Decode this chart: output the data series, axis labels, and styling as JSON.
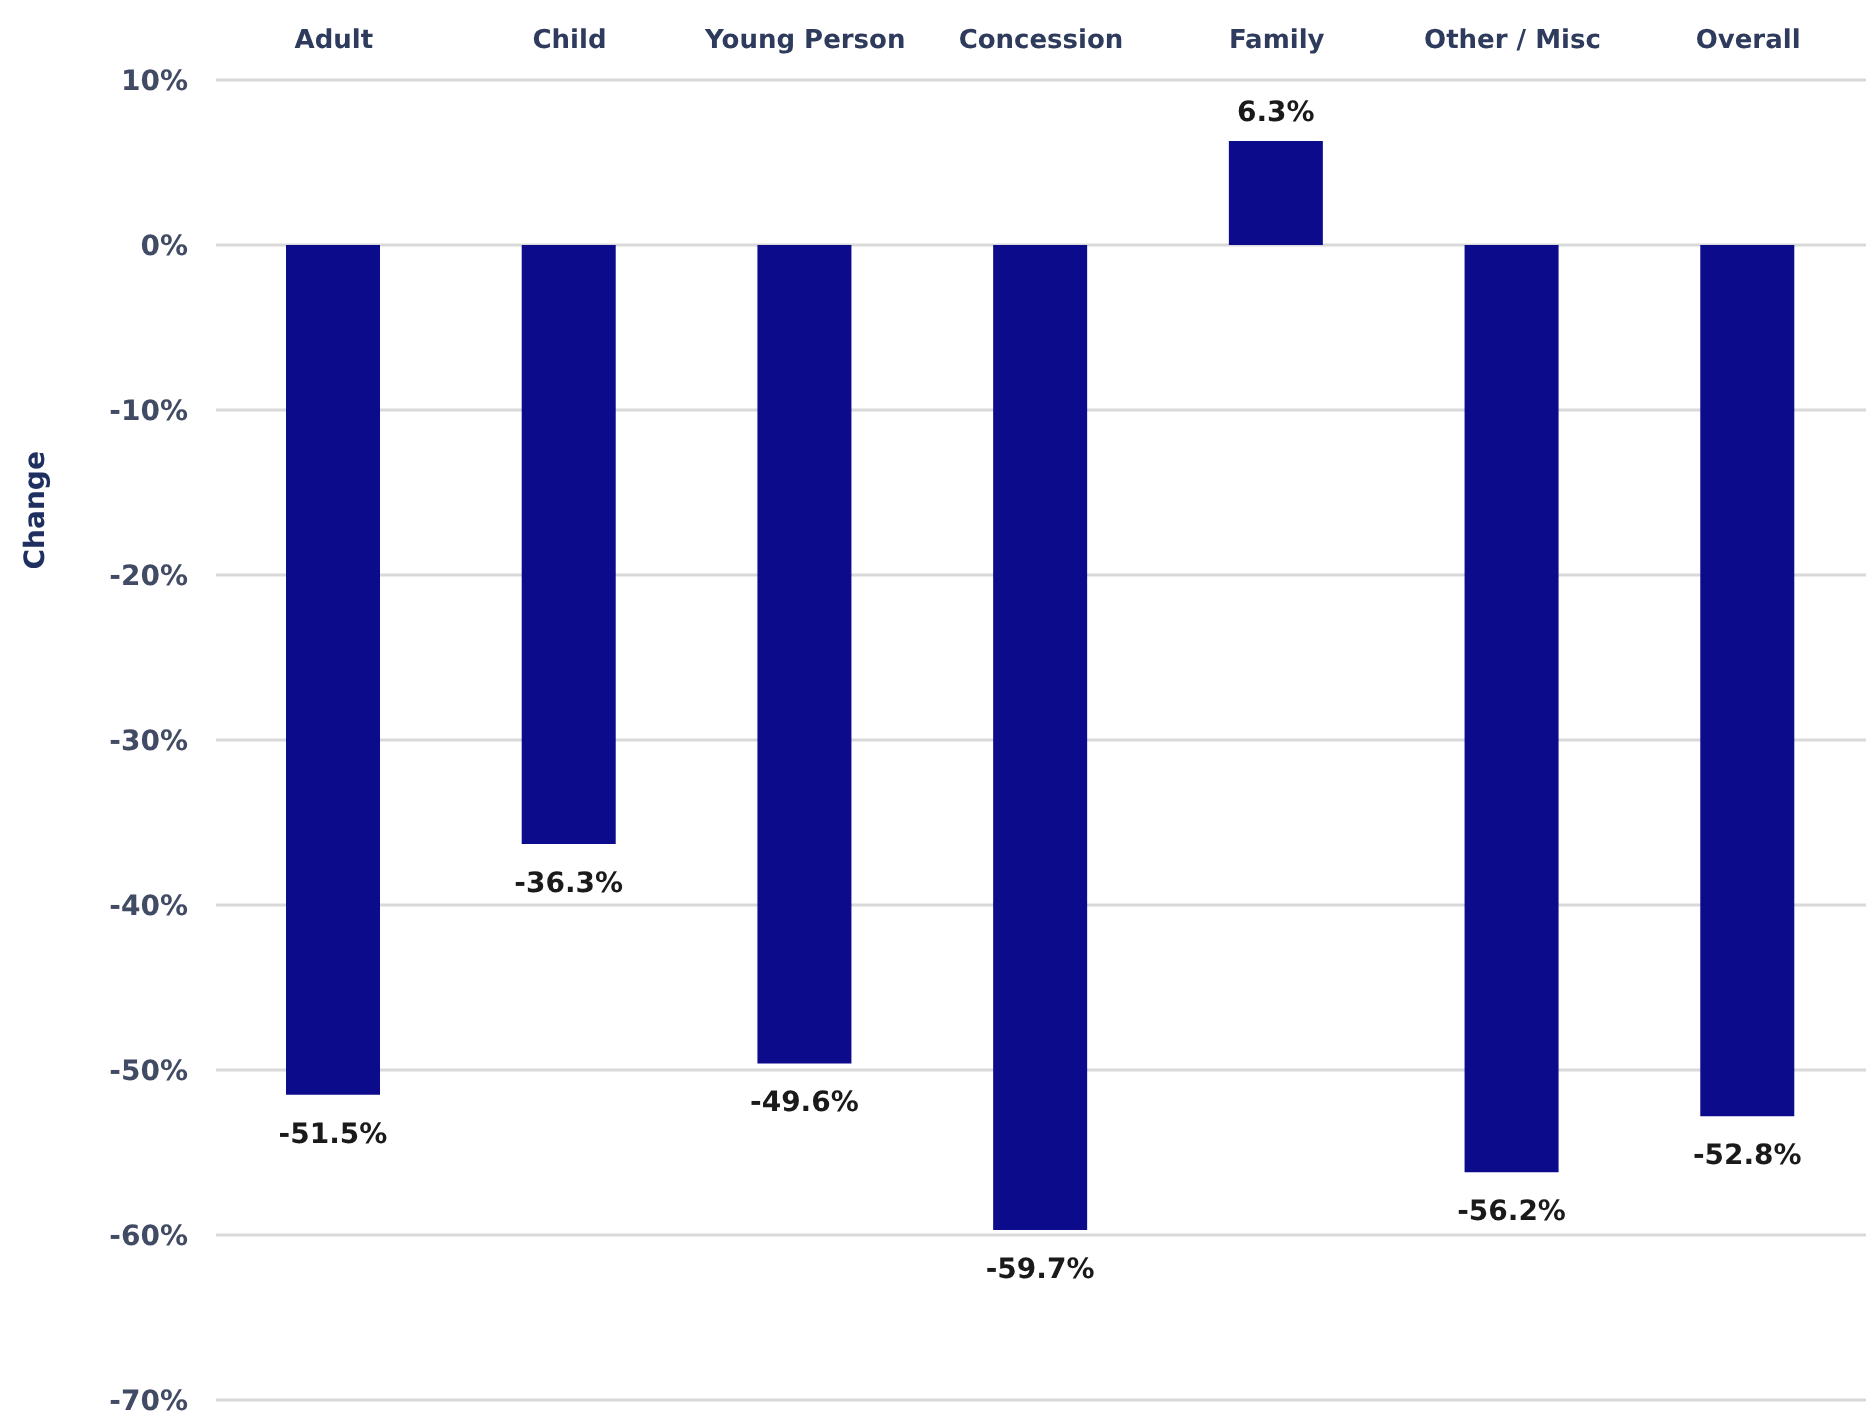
{
  "chart_data": {
    "type": "bar",
    "ylabel": "Change",
    "categories": [
      "Adult",
      "Child",
      "Young Person",
      "Concession",
      "Family",
      "Other / Misc",
      "Overall"
    ],
    "values": [
      -51.5,
      -36.3,
      -49.6,
      -59.7,
      6.3,
      -56.2,
      -52.8
    ],
    "value_labels": [
      "-51.5%",
      "-36.3%",
      "-49.6%",
      "-59.7%",
      "6.3%",
      "-56.2%",
      "-52.8%"
    ],
    "color": "#0b0b8c",
    "ylim": [
      -70,
      10
    ],
    "yticks": [
      {
        "value": 10,
        "label": "10%"
      },
      {
        "value": 0,
        "label": "0%"
      },
      {
        "value": -10,
        "label": "-10%"
      },
      {
        "value": -20,
        "label": "-20%"
      },
      {
        "value": -30,
        "label": "-30%"
      },
      {
        "value": -40,
        "label": "-40%"
      },
      {
        "value": -50,
        "label": "-50%"
      },
      {
        "value": -60,
        "label": "-60%"
      },
      {
        "value": -70,
        "label": "-70%"
      }
    ],
    "grid": "y"
  }
}
